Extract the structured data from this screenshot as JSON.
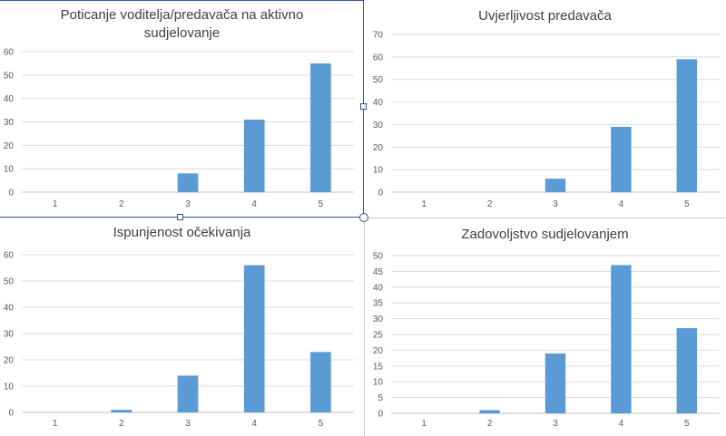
{
  "colors": {
    "bar": "#5b9bd5",
    "grid": "#d9d9d9",
    "axis": "#bfbfbf",
    "text": "#404040",
    "selection": "#2e5597"
  },
  "chart_data": [
    {
      "type": "bar",
      "title_lines": [
        "Poticanje voditelja/predavača na aktivno",
        "sudjelovanje"
      ],
      "categories": [
        "1",
        "2",
        "3",
        "4",
        "5"
      ],
      "values": [
        0,
        0,
        8,
        31,
        55
      ],
      "ylim": [
        0,
        60
      ],
      "yticks": [
        0,
        10,
        20,
        30,
        40,
        50,
        60
      ],
      "grid": true
    },
    {
      "type": "bar",
      "title_lines": [
        "Uvjerljivost predavača"
      ],
      "categories": [
        "1",
        "2",
        "3",
        "4",
        "5"
      ],
      "values": [
        0,
        0,
        6,
        29,
        59
      ],
      "ylim": [
        0,
        70
      ],
      "yticks": [
        0,
        10,
        20,
        30,
        40,
        50,
        60,
        70
      ],
      "grid": true
    },
    {
      "type": "bar",
      "title_lines": [
        "Ispunjenost očekivanja"
      ],
      "categories": [
        "1",
        "2",
        "3",
        "4",
        "5"
      ],
      "values": [
        0,
        1,
        14,
        56,
        23
      ],
      "ylim": [
        0,
        60
      ],
      "yticks": [
        0,
        10,
        20,
        30,
        40,
        50,
        60
      ],
      "grid": true
    },
    {
      "type": "bar",
      "title_lines": [
        "Zadovoljstvo sudjelovanjem"
      ],
      "categories": [
        "1",
        "2",
        "3",
        "4",
        "5"
      ],
      "values": [
        0,
        1,
        19,
        47,
        27
      ],
      "ylim": [
        0,
        50
      ],
      "yticks": [
        0,
        5,
        10,
        15,
        20,
        25,
        30,
        35,
        40,
        45,
        50
      ],
      "grid": true
    }
  ]
}
